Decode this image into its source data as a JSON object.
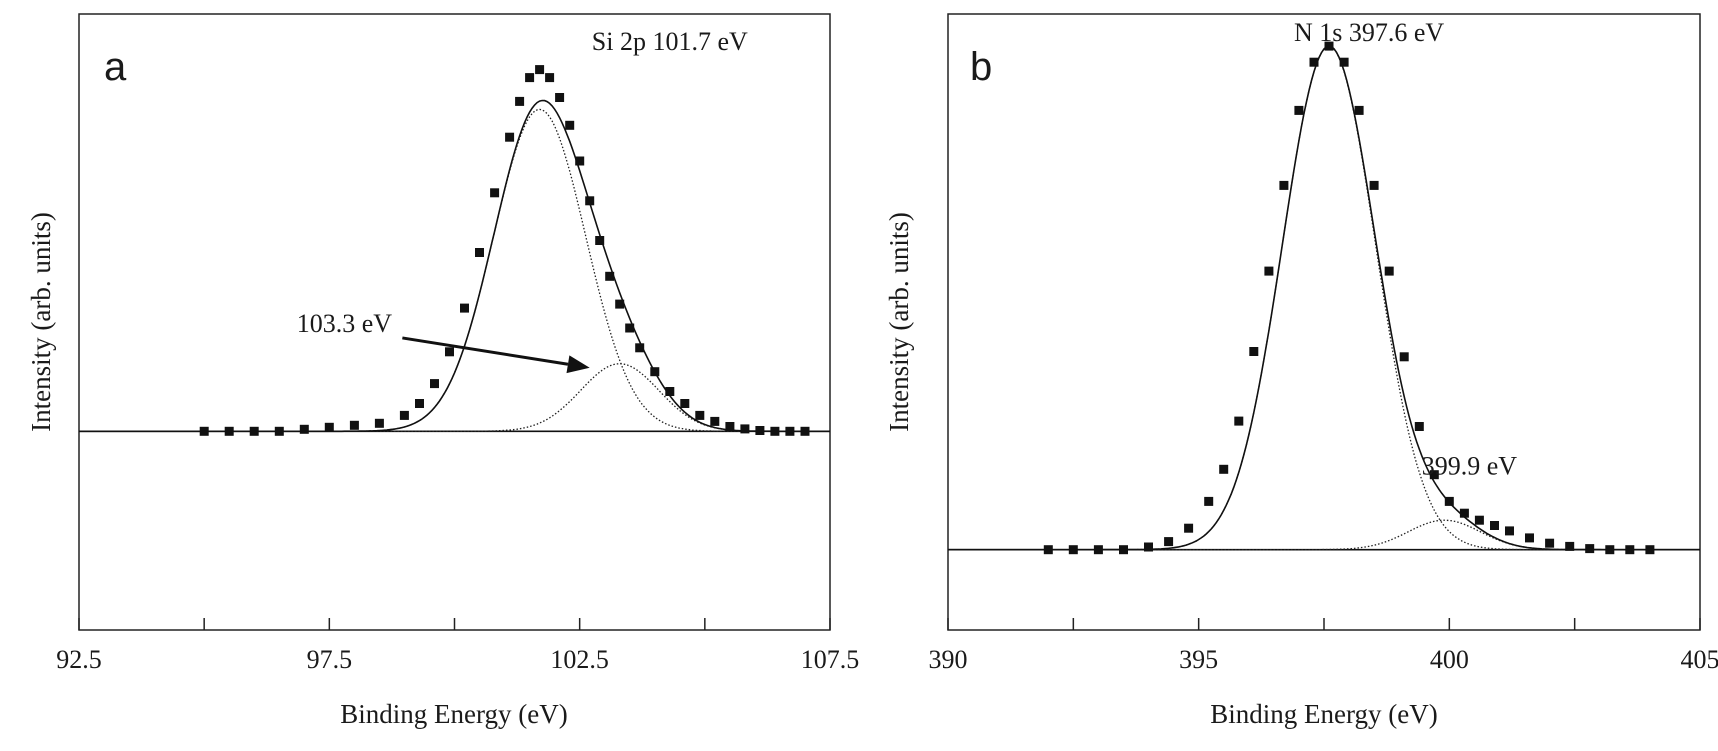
{
  "chart_data": [
    {
      "type": "scatter",
      "panel": "a",
      "title": "",
      "xlabel": "Binding Energy (eV)",
      "ylabel": "Intensity (arb. units)",
      "xlim": [
        92.5,
        107.5
      ],
      "ylim": [
        -0.5,
        1.05
      ],
      "x_ticks": [
        92.5,
        95,
        97.5,
        100,
        102.5,
        105,
        107.5
      ],
      "x_tick_labels": [
        "92.5",
        "",
        "97.5",
        "",
        "102.5",
        "",
        "107.5"
      ],
      "grid": false,
      "legend": "none",
      "baseline": 0,
      "annotations": [
        {
          "text": "Si 2p 101.7 eV",
          "x": 104.3,
          "y": 0.96
        },
        {
          "text": "103.3 eV",
          "x": 97.8,
          "y": 0.25,
          "arrow_to": [
            102.7,
            0.16
          ]
        }
      ],
      "components": [
        {
          "center": 101.7,
          "amplitude": 0.81,
          "sigma": 0.92
        },
        {
          "center": 103.3,
          "amplitude": 0.17,
          "sigma": 0.78
        }
      ],
      "series": [
        {
          "name": "",
          "style": "square-markers",
          "x": [
            95.0,
            95.5,
            96.0,
            96.5,
            97.0,
            97.5,
            98.0,
            98.5,
            99.0,
            99.3,
            99.6,
            99.9,
            100.2,
            100.5,
            100.8,
            101.1,
            101.3,
            101.5,
            101.7,
            101.9,
            102.1,
            102.3,
            102.5,
            102.7,
            102.9,
            103.1,
            103.3,
            103.5,
            103.7,
            104.0,
            104.3,
            104.6,
            104.9,
            105.2,
            105.5,
            105.8,
            106.1,
            106.4,
            106.7,
            107.0
          ],
          "y": [
            0.0,
            0.0,
            0.0,
            0.0,
            0.005,
            0.01,
            0.015,
            0.02,
            0.04,
            0.07,
            0.12,
            0.2,
            0.31,
            0.45,
            0.6,
            0.74,
            0.83,
            0.89,
            0.91,
            0.89,
            0.84,
            0.77,
            0.68,
            0.58,
            0.48,
            0.39,
            0.32,
            0.26,
            0.21,
            0.15,
            0.1,
            0.07,
            0.04,
            0.025,
            0.012,
            0.006,
            0.002,
            0.0,
            0.0,
            0.0
          ]
        }
      ]
    },
    {
      "type": "scatter",
      "panel": "b",
      "title": "",
      "xlabel": "Binding Energy (eV)",
      "ylabel": "Intensity (arb. units)",
      "xlim": [
        390,
        405
      ],
      "ylim": [
        -0.15,
        1.0
      ],
      "x_ticks": [
        390,
        392.5,
        395,
        397.5,
        400,
        402.5,
        405
      ],
      "x_tick_labels": [
        "390",
        "",
        "395",
        "",
        "400",
        "",
        "405"
      ],
      "grid": false,
      "legend": "none",
      "baseline": 0,
      "annotations": [
        {
          "text": "N 1s 397.6 eV",
          "x": 398.4,
          "y": 0.95
        },
        {
          "text": "399.9 eV",
          "x": 400.4,
          "y": 0.14
        }
      ],
      "components": [
        {
          "center": 397.6,
          "amplitude": 0.94,
          "sigma": 0.93
        },
        {
          "center": 399.9,
          "amplitude": 0.055,
          "sigma": 0.72
        }
      ],
      "series": [
        {
          "name": "",
          "style": "square-markers",
          "x": [
            392.0,
            392.5,
            393.0,
            393.5,
            394.0,
            394.4,
            394.8,
            395.2,
            395.5,
            395.8,
            396.1,
            396.4,
            396.7,
            397.0,
            397.3,
            397.6,
            397.9,
            398.2,
            398.5,
            398.8,
            399.1,
            399.4,
            399.7,
            400.0,
            400.3,
            400.6,
            400.9,
            401.2,
            401.6,
            402.0,
            402.4,
            402.8,
            403.2,
            403.6,
            404.0
          ],
          "y": [
            0.0,
            0.0,
            0.0,
            0.0,
            0.005,
            0.015,
            0.04,
            0.09,
            0.15,
            0.24,
            0.37,
            0.52,
            0.68,
            0.82,
            0.91,
            0.94,
            0.91,
            0.82,
            0.68,
            0.52,
            0.36,
            0.23,
            0.14,
            0.09,
            0.068,
            0.055,
            0.045,
            0.035,
            0.022,
            0.012,
            0.006,
            0.002,
            0.0,
            0.0,
            0.0
          ]
        }
      ]
    }
  ]
}
